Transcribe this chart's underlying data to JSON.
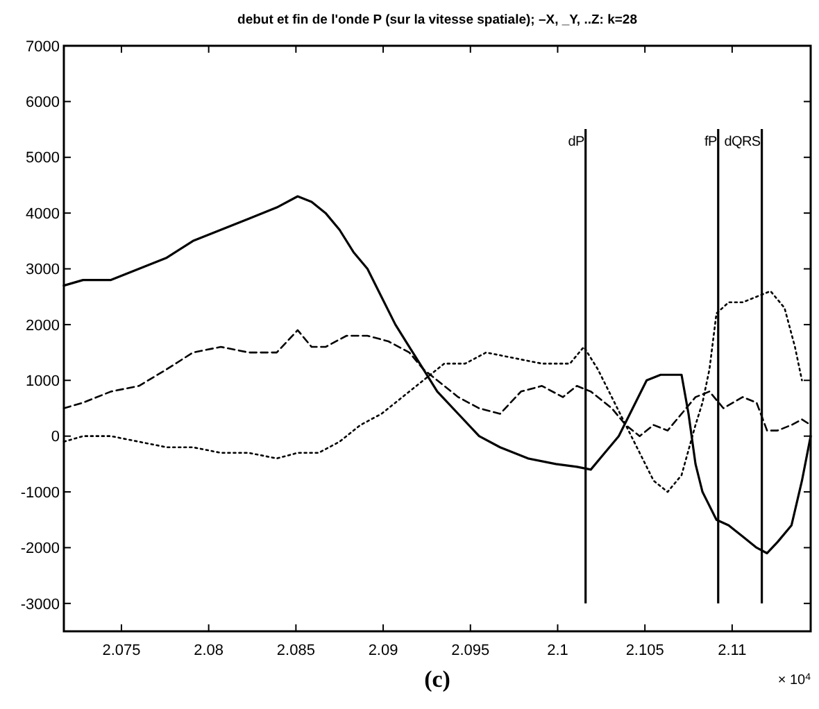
{
  "chart_data": {
    "type": "line",
    "title": "debut et fin de l'onde P (sur la vitesse spatiale); –X, _Y, ..Z: k=28",
    "annotations": [
      "× 10$^{4}$",
      "(c)"
    ],
    "xlim": [
      2.0717,
      2.1145
    ],
    "xticks": [
      2.075,
      2.08,
      2.085,
      2.09,
      2.095,
      2.1,
      2.105,
      2.11
    ],
    "ylim": [
      -3500,
      7000
    ],
    "yticks": [
      -3000,
      -2000,
      -1000,
      0,
      1000,
      2000,
      3000,
      4000,
      5000,
      6000,
      7000
    ],
    "grid": false,
    "marker": "none",
    "ref_lines": [
      {
        "axis": "x",
        "value": 2.1016,
        "label": "dP",
        "color": "#000000"
      },
      {
        "axis": "x",
        "value": 2.1092,
        "label": "fP",
        "color": "#000000"
      },
      {
        "axis": "x",
        "value": 2.1117,
        "label": "dQRS",
        "color": "#000000"
      }
    ],
    "series": [
      {
        "color": "#000000",
        "line_style": "solid",
        "x": [
          2.0717,
          2.0728,
          2.0744,
          2.076,
          2.0776,
          2.0791,
          2.0807,
          2.0823,
          2.0839,
          2.0851,
          2.0859,
          2.0867,
          2.0875,
          2.0883,
          2.0891,
          2.0899,
          2.0907,
          2.0915,
          2.0923,
          2.0931,
          2.0943,
          2.0955,
          2.0967,
          2.0983,
          2.0999,
          2.1011,
          2.1019,
          2.1027,
          2.1035,
          2.1043,
          2.1051,
          2.1059,
          2.1071,
          2.1075,
          2.1079,
          2.1083,
          2.1091,
          2.1098,
          2.1106,
          2.1114,
          2.112,
          2.1126,
          2.1134,
          2.114,
          2.1145
        ],
        "values": [
          2700,
          2800,
          2800,
          3000,
          3200,
          3500,
          3700,
          3900,
          4100,
          4300,
          4200,
          4000,
          3700,
          3300,
          3000,
          2500,
          2000,
          1600,
          1200,
          800,
          400,
          0,
          -200,
          -400,
          -500,
          -550,
          -600,
          -300,
          0,
          500,
          1000,
          1100,
          1100,
          400,
          -500,
          -1000,
          -1500,
          -1600,
          -1800,
          -2000,
          -2100,
          -1900,
          -1600,
          -800,
          0
        ]
      },
      {
        "color": "#000000",
        "line_style": "dashed",
        "x": [
          2.0717,
          2.0728,
          2.0744,
          2.076,
          2.0776,
          2.0791,
          2.0807,
          2.0823,
          2.0839,
          2.0851,
          2.0859,
          2.0867,
          2.0879,
          2.0891,
          2.0903,
          2.0915,
          2.0923,
          2.0931,
          2.0943,
          2.0955,
          2.0967,
          2.0979,
          2.0991,
          2.1003,
          2.1011,
          2.1019,
          2.1031,
          2.1039,
          2.1047,
          2.1055,
          2.1063,
          2.1071,
          2.1079,
          2.1087,
          2.1095,
          2.1106,
          2.1114,
          2.112,
          2.1126,
          2.1134,
          2.114,
          2.1145
        ],
        "values": [
          500,
          600,
          800,
          900,
          1200,
          1500,
          1600,
          1500,
          1500,
          1900,
          1600,
          1600,
          1800,
          1800,
          1700,
          1500,
          1200,
          1000,
          700,
          500,
          400,
          800,
          900,
          700,
          900,
          800,
          500,
          200,
          0,
          200,
          100,
          400,
          700,
          800,
          500,
          700,
          600,
          100,
          100,
          200,
          300,
          200
        ]
      },
      {
        "color": "#000000",
        "line_style": "dotted",
        "x": [
          2.0717,
          2.0728,
          2.0744,
          2.076,
          2.0776,
          2.0791,
          2.0807,
          2.0823,
          2.0839,
          2.0851,
          2.0863,
          2.0875,
          2.0887,
          2.0899,
          2.0911,
          2.0923,
          2.0935,
          2.0947,
          2.0959,
          2.0975,
          2.0991,
          2.1007,
          2.1015,
          2.1023,
          2.1031,
          2.1039,
          2.1047,
          2.1055,
          2.1063,
          2.1071,
          2.1079,
          2.1083,
          2.1087,
          2.1091,
          2.1098,
          2.1106,
          2.1114,
          2.1122,
          2.113,
          2.1136,
          2.114
        ],
        "values": [
          -100,
          0,
          0,
          -100,
          -200,
          -200,
          -300,
          -300,
          -400,
          -300,
          -300,
          -100,
          200,
          400,
          700,
          1000,
          1300,
          1300,
          1500,
          1400,
          1300,
          1300,
          1600,
          1200,
          700,
          200,
          -300,
          -800,
          -1000,
          -700,
          200,
          600,
          1200,
          2200,
          2400,
          2400,
          2500,
          2600,
          2300,
          1600,
          1000
        ]
      }
    ]
  }
}
